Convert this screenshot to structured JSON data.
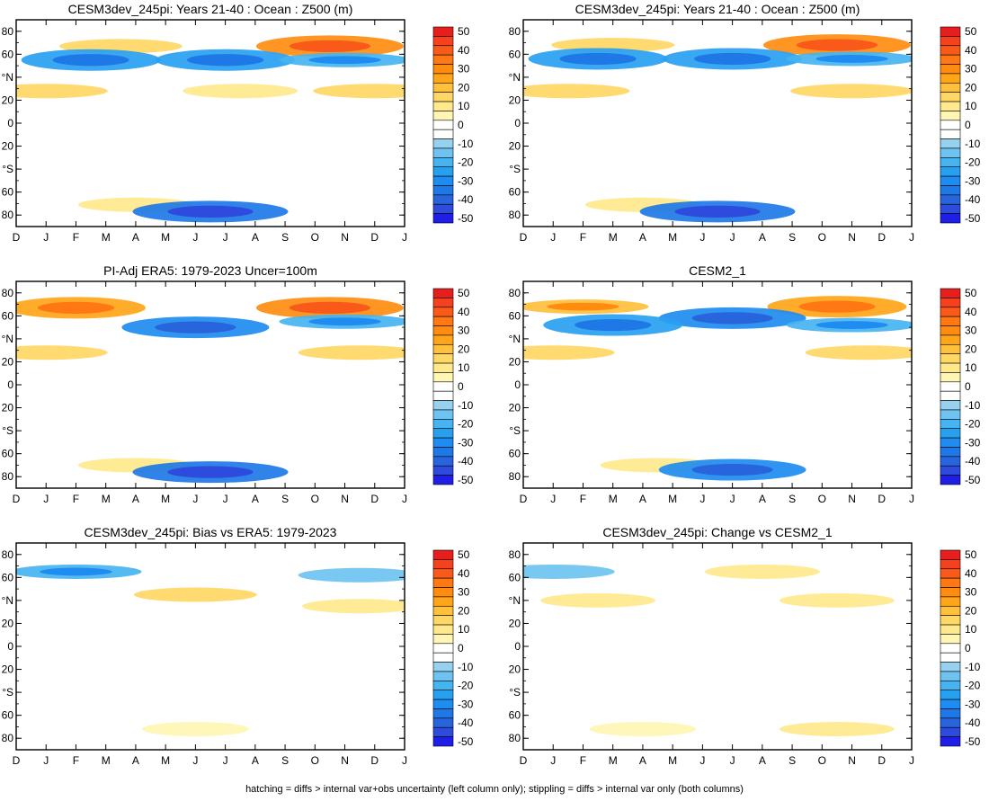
{
  "footnote": "hatching = diffs > internal var+obs uncertainty (left column only); stippling = diffs > internal var only (both columns)",
  "colors": {
    "levels": [
      50,
      45,
      40,
      35,
      30,
      25,
      20,
      15,
      10,
      5,
      0,
      -5,
      -10,
      -15,
      -20,
      -25,
      -30,
      -35,
      -40,
      -45,
      -50
    ],
    "swatches": [
      "#e61e1e",
      "#f5411e",
      "#fa5a19",
      "#ff7814",
      "#ff8c0f",
      "#ffa519",
      "#ffc03c",
      "#ffd765",
      "#ffe98c",
      "#fff5b4",
      "#ffffff",
      "#ffffff",
      "#96d2f0",
      "#6ec3f0",
      "#46b4f0",
      "#28a0f0",
      "#1e8cf0",
      "#1e78e6",
      "#2864dc",
      "#2d4bdc",
      "#1e1ee6"
    ]
  },
  "colorbar_labels": [
    "50",
    "40",
    "30",
    "20",
    "10",
    "0",
    "-10",
    "-20",
    "-30",
    "-40",
    "-50"
  ],
  "chart_data": [
    {
      "type": "heatmap",
      "title": "CESM3dev_245pi: Years 21-40 : Ocean : Z500 (m)",
      "x": [
        "D",
        "J",
        "F",
        "M",
        "A",
        "M",
        "J",
        "J",
        "A",
        "S",
        "O",
        "N",
        "D",
        "J"
      ],
      "y_ticks": [
        "80",
        "60",
        "°N",
        "20",
        "0",
        "20",
        "°S",
        "60",
        "80"
      ],
      "ylim": [
        -90,
        90
      ],
      "zlim": [
        -50,
        50
      ],
      "features": [
        {
          "lat": 67,
          "month": 3.5,
          "value": 15
        },
        {
          "lat": 67,
          "month": 10.5,
          "value": 30
        },
        {
          "lat": 55,
          "month": 2.5,
          "value": -25
        },
        {
          "lat": 55,
          "month": 7.0,
          "value": -25
        },
        {
          "lat": 55,
          "month": 11.0,
          "value": -20
        },
        {
          "lat": 28,
          "month": 1.0,
          "value": 15
        },
        {
          "lat": 28,
          "month": 7.5,
          "value": 10
        },
        {
          "lat": 28,
          "month": 12.0,
          "value": 15
        },
        {
          "lat": -71,
          "month": 4.0,
          "value": 10
        },
        {
          "lat": -77,
          "month": 6.5,
          "value": -35
        }
      ]
    },
    {
      "type": "heatmap",
      "title": "CESM3dev_245pi: Years 21-40 : Ocean : Z500 (m)",
      "x": [
        "D",
        "J",
        "F",
        "M",
        "A",
        "M",
        "J",
        "J",
        "A",
        "S",
        "O",
        "N",
        "D",
        "J"
      ],
      "y_ticks": [
        "80",
        "60",
        "°N",
        "20",
        "0",
        "20",
        "°S",
        "60",
        "80"
      ],
      "ylim": [
        -90,
        90
      ],
      "zlim": [
        -50,
        50
      ],
      "features": [
        {
          "lat": 68,
          "month": 3.0,
          "value": 15
        },
        {
          "lat": 68,
          "month": 10.5,
          "value": 30
        },
        {
          "lat": 56,
          "month": 2.5,
          "value": -25
        },
        {
          "lat": 56,
          "month": 7.0,
          "value": -25
        },
        {
          "lat": 56,
          "month": 11.0,
          "value": -20
        },
        {
          "lat": 28,
          "month": 1.5,
          "value": 15
        },
        {
          "lat": 28,
          "month": 11.0,
          "value": 15
        },
        {
          "lat": -71,
          "month": 4.0,
          "value": 10
        },
        {
          "lat": -77,
          "month": 6.5,
          "value": -35
        }
      ]
    },
    {
      "type": "heatmap",
      "title": "PI-Adj ERA5: 1979-2023 Uncer=100m",
      "x": [
        "D",
        "J",
        "F",
        "M",
        "A",
        "M",
        "J",
        "J",
        "A",
        "S",
        "O",
        "N",
        "D",
        "J"
      ],
      "y_ticks": [
        "80",
        "60",
        "°N",
        "20",
        "0",
        "20",
        "°S",
        "60",
        "80"
      ],
      "ylim": [
        -90,
        90
      ],
      "zlim": [
        -50,
        50
      ],
      "features": [
        {
          "lat": 67,
          "month": 2.0,
          "value": 25
        },
        {
          "lat": 67,
          "month": 10.5,
          "value": 30
        },
        {
          "lat": 50,
          "month": 6.0,
          "value": -30
        },
        {
          "lat": 55,
          "month": 11.0,
          "value": -20
        },
        {
          "lat": 28,
          "month": 1.0,
          "value": 15
        },
        {
          "lat": 28,
          "month": 11.5,
          "value": 15
        },
        {
          "lat": -70,
          "month": 4.0,
          "value": 10
        },
        {
          "lat": -76,
          "month": 6.5,
          "value": -35
        }
      ]
    },
    {
      "type": "heatmap",
      "title": "CESM2_1",
      "x": [
        "D",
        "J",
        "F",
        "M",
        "A",
        "M",
        "J",
        "J",
        "A",
        "S",
        "O",
        "N",
        "D",
        "J"
      ],
      "y_ticks": [
        "80",
        "60",
        "°N",
        "20",
        "0",
        "20",
        "°S",
        "60",
        "80"
      ],
      "ylim": [
        -90,
        90
      ],
      "zlim": [
        -50,
        50
      ],
      "features": [
        {
          "lat": 68,
          "month": 2.0,
          "value": 20
        },
        {
          "lat": 68,
          "month": 10.5,
          "value": 25
        },
        {
          "lat": 58,
          "month": 7.0,
          "value": -30
        },
        {
          "lat": 52,
          "month": 3.0,
          "value": -25
        },
        {
          "lat": 52,
          "month": 11.0,
          "value": -20
        },
        {
          "lat": 28,
          "month": 1.0,
          "value": 15
        },
        {
          "lat": 28,
          "month": 11.5,
          "value": 15
        },
        {
          "lat": -70,
          "month": 4.5,
          "value": 10
        },
        {
          "lat": -74,
          "month": 7.0,
          "value": -30
        }
      ]
    },
    {
      "type": "heatmap",
      "title": "CESM3dev_245pi: Bias vs ERA5: 1979-2023",
      "x": [
        "D",
        "J",
        "F",
        "M",
        "A",
        "M",
        "J",
        "J",
        "A",
        "S",
        "O",
        "N",
        "D",
        "J"
      ],
      "y_ticks": [
        "80",
        "60",
        "°N",
        "20",
        "0",
        "20",
        "°S",
        "60",
        "80"
      ],
      "ylim": [
        -90,
        90
      ],
      "zlim": [
        -50,
        50
      ],
      "features": [
        {
          "lat": 65,
          "month": 2.0,
          "value": -20
        },
        {
          "lat": 62,
          "month": 11.5,
          "value": -15
        },
        {
          "lat": 45,
          "month": 6.0,
          "value": 15
        },
        {
          "lat": 35,
          "month": 11.5,
          "value": 10
        },
        {
          "lat": -72,
          "month": 6.0,
          "value": 5
        }
      ]
    },
    {
      "type": "heatmap",
      "title": "CESM3dev_245pi: Change vs CESM2_1",
      "x": [
        "D",
        "J",
        "F",
        "M",
        "A",
        "M",
        "J",
        "J",
        "A",
        "S",
        "O",
        "N",
        "D",
        "J"
      ],
      "y_ticks": [
        "80",
        "60",
        "°N",
        "20",
        "0",
        "20",
        "°S",
        "60",
        "80"
      ],
      "ylim": [
        -90,
        90
      ],
      "zlim": [
        -50,
        50
      ],
      "features": [
        {
          "lat": 65,
          "month": 1.0,
          "value": -15
        },
        {
          "lat": 65,
          "month": 8.0,
          "value": 10
        },
        {
          "lat": 40,
          "month": 2.5,
          "value": 10
        },
        {
          "lat": 40,
          "month": 10.5,
          "value": 10
        },
        {
          "lat": -72,
          "month": 4.0,
          "value": 5
        },
        {
          "lat": -72,
          "month": 10.5,
          "value": 10
        }
      ]
    }
  ]
}
